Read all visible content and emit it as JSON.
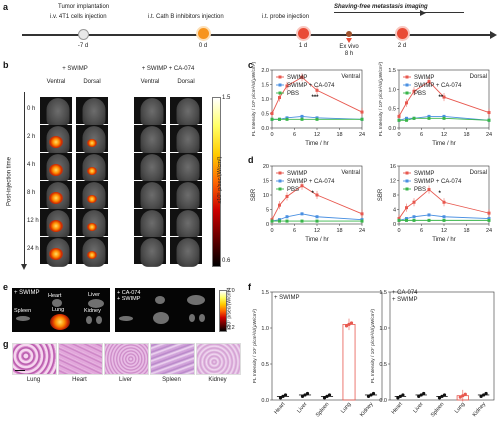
{
  "panels": {
    "a": "a",
    "b": "b",
    "c": "c",
    "d": "d",
    "e": "e",
    "f": "f",
    "g": "g"
  },
  "timeline": {
    "title": "Shaving-free metastasis imaging",
    "events": [
      {
        "top": "Tumor implantation",
        "top2": "i.v. 4T1 cells injection",
        "bottom": "-7 d",
        "color": "#e8e8e8"
      },
      {
        "top": "i.t. Cath B inhibitors injection",
        "top2": "",
        "bottom": "0 d",
        "color": "#f7941d"
      },
      {
        "top": "i.t. probe injection",
        "top2": "",
        "bottom": "1 d",
        "color": "#e94b36"
      },
      {
        "top": "",
        "top2": "",
        "bottom": "2 d",
        "color": "#e94b36"
      }
    ],
    "exvivo": "Ex vivo",
    "exvivo_time": "8 h"
  },
  "panel_b": {
    "groups": [
      "+ SWIMP",
      "+ SWIMP + CA-074"
    ],
    "views": [
      "Ventral",
      "Dorsal",
      "Ventral",
      "Dorsal"
    ],
    "times": [
      "0 h",
      "2 h",
      "4 h",
      "8 h",
      "12 h",
      "24 h"
    ],
    "ylabel": "Post-injection time",
    "scale_max": "1.5",
    "scale_min": "0.6",
    "scale_label": "x10⁵ p/sec/(W/cm²)"
  },
  "panel_e": {
    "left_group": "+ SWIMP",
    "right_group": "+ CA-074\n+ SWIMP",
    "organs": [
      "Heart",
      "Liver",
      "Spleen",
      "Lung",
      "Kidney"
    ],
    "scale_max": "2.0",
    "scale_min": "0.2",
    "scale_label": "x10⁷ p/sec/(W/cm²)"
  },
  "panel_g": {
    "organs": [
      "Lung",
      "Heart",
      "Liver",
      "Spleen",
      "Kidney"
    ]
  },
  "panel_f_labels": {
    "left_group": "+ SWIMP",
    "right_group_1": "+ CA-074",
    "right_group_2": "+ SWIMP"
  },
  "chart_data": [
    {
      "type": "line",
      "panel": "c",
      "subtitle": "Ventral",
      "x": [
        0,
        2,
        4,
        8,
        12,
        24
      ],
      "series": [
        {
          "name": "SWIMP",
          "color": "#e8584f",
          "values": [
            0.5,
            1.05,
            1.45,
            1.75,
            1.3,
            0.55
          ]
        },
        {
          "name": "SWIMP + CA-074",
          "color": "#4a90e2",
          "values": [
            0.3,
            0.3,
            0.35,
            0.4,
            0.35,
            0.3
          ]
        },
        {
          "name": "PBS",
          "color": "#39b54a",
          "values": [
            0.3,
            0.3,
            0.3,
            0.3,
            0.3,
            0.3
          ]
        }
      ],
      "xlabel": "Time / hr",
      "ylabel": "FL Intensity / 10⁵ p/cm²/s/(μW/cm²)",
      "ylim": [
        0,
        2
      ],
      "yticks": [
        0.0,
        0.5,
        1.0,
        1.5,
        2.0
      ],
      "xticks": [
        0,
        6,
        12,
        18,
        24
      ],
      "annotation": "***"
    },
    {
      "type": "line",
      "panel": "c",
      "subtitle": "Dorsal",
      "x": [
        0,
        2,
        4,
        8,
        12,
        24
      ],
      "series": [
        {
          "name": "SWIMP",
          "color": "#e8584f",
          "values": [
            0.3,
            0.65,
            0.95,
            1.2,
            0.8,
            0.4
          ]
        },
        {
          "name": "SWIMP + CA-074",
          "color": "#4a90e2",
          "values": [
            0.2,
            0.25,
            0.25,
            0.3,
            0.3,
            0.2
          ]
        },
        {
          "name": "PBS",
          "color": "#39b54a",
          "values": [
            0.2,
            0.2,
            0.25,
            0.25,
            0.25,
            0.2
          ]
        }
      ],
      "xlabel": "Time / hr",
      "ylabel": "FL Intensity / 10⁵ p/cm²/s/(μW/cm²)",
      "ylim": [
        0,
        1.5
      ],
      "yticks": [
        0.0,
        0.5,
        1.0,
        1.5
      ],
      "xticks": [
        0,
        6,
        12,
        18,
        24
      ],
      "annotation": "**"
    },
    {
      "type": "line",
      "panel": "d",
      "subtitle": "Ventral",
      "x": [
        0,
        2,
        4,
        8,
        12,
        24
      ],
      "series": [
        {
          "name": "SWIMP",
          "color": "#e8584f",
          "values": [
            1.5,
            6.5,
            9.5,
            13.2,
            10.0,
            3.5
          ]
        },
        {
          "name": "SWIMP + CA-074",
          "color": "#4a90e2",
          "values": [
            1.0,
            1.5,
            2.5,
            3.5,
            2.5,
            1.5
          ]
        },
        {
          "name": "PBS",
          "color": "#39b54a",
          "values": [
            1.0,
            1.0,
            1.0,
            1.0,
            1.0,
            1.0
          ]
        }
      ],
      "xlabel": "Time / hr",
      "ylabel": "SBR",
      "ylim": [
        0,
        20
      ],
      "yticks": [
        0,
        5,
        10,
        15,
        20
      ],
      "xticks": [
        0,
        6,
        12,
        18,
        24
      ],
      "annotation": "*"
    },
    {
      "type": "line",
      "panel": "d",
      "subtitle": "Dorsal",
      "x": [
        0,
        2,
        4,
        8,
        12,
        24
      ],
      "series": [
        {
          "name": "SWIMP",
          "color": "#e8584f",
          "values": [
            1.5,
            4.5,
            6.0,
            9.5,
            6.0,
            3.0
          ]
        },
        {
          "name": "SWIMP + CA-074",
          "color": "#4a90e2",
          "values": [
            1.0,
            1.5,
            2.0,
            2.5,
            2.0,
            1.5
          ]
        },
        {
          "name": "PBS",
          "color": "#39b54a",
          "values": [
            1.0,
            1.0,
            1.0,
            1.0,
            1.0,
            1.0
          ]
        }
      ],
      "xlabel": "Time / hr",
      "ylabel": "SBR",
      "ylim": [
        0,
        16
      ],
      "yticks": [
        0,
        4,
        8,
        12,
        16
      ],
      "xticks": [
        0,
        6,
        12,
        18,
        24
      ],
      "annotation": "*"
    },
    {
      "type": "bar",
      "panel": "f",
      "group": "+ SWIMP",
      "categories": [
        "Heart",
        "Liver",
        "Spleen",
        "Lung",
        "Kidney"
      ],
      "values": [
        0.05,
        0.07,
        0.05,
        1.05,
        0.07
      ],
      "colors": [
        "#111111",
        "#111111",
        "#111111",
        "#e8584f",
        "#111111"
      ],
      "ylabel": "FL Intensity / 10⁷ p/cm²/s/(μW/cm²)",
      "ylim": [
        0,
        1.5
      ],
      "yticks": [
        0.0,
        0.5,
        1.0,
        1.5
      ]
    },
    {
      "type": "bar",
      "panel": "f",
      "group": "+ CA-074 + SWIMP",
      "categories": [
        "Heart",
        "Liver",
        "Spleen",
        "Lung",
        "Kidney"
      ],
      "values": [
        0.05,
        0.07,
        0.05,
        0.06,
        0.07
      ],
      "colors": [
        "#111111",
        "#111111",
        "#111111",
        "#e8584f",
        "#111111"
      ],
      "ylabel": "FL Intensity / 10⁷ p/cm²/s/(μW/cm²)",
      "ylim": [
        0,
        1.5
      ],
      "yticks": [
        0.0,
        0.5,
        1.0,
        1.5
      ]
    }
  ]
}
